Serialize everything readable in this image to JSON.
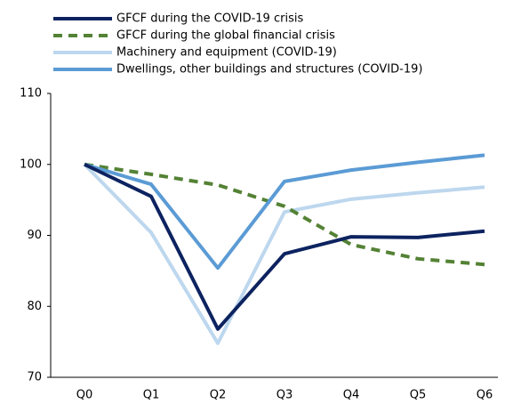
{
  "chart_data": {
    "type": "line",
    "categories": [
      "Q0",
      "Q1",
      "Q2",
      "Q3",
      "Q4",
      "Q5",
      "Q6"
    ],
    "series": [
      {
        "name": "GFCF during the COVID-19 crisis",
        "color": "#0d2360",
        "dashed": false,
        "values": [
          100,
          95.5,
          76.8,
          87.4,
          89.8,
          89.7,
          90.6
        ]
      },
      {
        "name": "GFCF during the global financial crisis",
        "color": "#548235",
        "dashed": true,
        "values": [
          100,
          98.6,
          97.1,
          94.1,
          88.7,
          86.7,
          85.9
        ]
      },
      {
        "name": "Machinery and equipment (COVID-19)",
        "color": "#bdd7ee",
        "dashed": false,
        "values": [
          100,
          90.4,
          74.8,
          93.3,
          95.1,
          96.0,
          96.8
        ]
      },
      {
        "name": "Dwellings, other buildings and structures (COVID-19)",
        "color": "#5b9bd5",
        "dashed": false,
        "values": [
          100,
          97.2,
          85.4,
          97.6,
          99.2,
          100.3,
          101.3
        ]
      }
    ],
    "ylim": [
      70,
      110
    ],
    "yticks": [
      70,
      80,
      90,
      100,
      110
    ],
    "grid": false
  }
}
